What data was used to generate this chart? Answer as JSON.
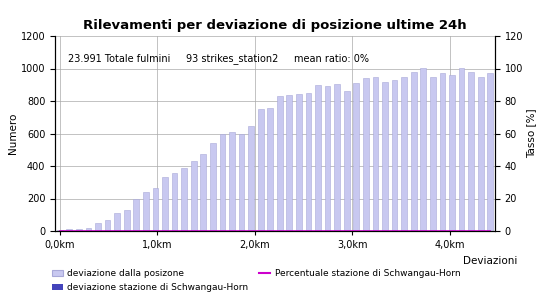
{
  "title": "Rilevamenti per deviazione di posizione ultime 24h",
  "annotation": "23.991 Totale fulmini     93 strikes_station2     mean ratio: 0%",
  "xlabel": "Deviazioni",
  "ylabel_left": "Numero",
  "ylabel_right": "Tasso [%]",
  "ylim_left": [
    0,
    1200
  ],
  "ylim_right": [
    0,
    120
  ],
  "xtick_labels": [
    "0,0km",
    "1,0km",
    "2,0km",
    "3,0km",
    "4,0km"
  ],
  "ytick_left": [
    0,
    200,
    400,
    600,
    800,
    1000,
    1200
  ],
  "ytick_right": [
    0,
    20,
    40,
    60,
    80,
    100,
    120
  ],
  "bar_values": [
    5,
    10,
    15,
    20,
    50,
    65,
    110,
    130,
    195,
    240,
    265,
    335,
    355,
    385,
    430,
    475,
    540,
    600,
    610,
    600,
    645,
    750,
    755,
    830,
    840,
    845,
    850,
    900,
    895,
    905,
    860,
    910,
    940,
    950,
    920,
    930,
    950,
    980,
    1005,
    945,
    970,
    960,
    1005,
    980,
    950,
    975
  ],
  "bar_color": "#c8c8f0",
  "bar_edge_color": "#a8a8d8",
  "station2_values": [
    0,
    0,
    0,
    0,
    0,
    0,
    0,
    0,
    0,
    0,
    0,
    0,
    0,
    0,
    0,
    0,
    0,
    0,
    0,
    0,
    0,
    0,
    0,
    0,
    0,
    0,
    0,
    0,
    0,
    0,
    0,
    0,
    0,
    0,
    0,
    0,
    0,
    0,
    0,
    0,
    0,
    0,
    0,
    0,
    0,
    0
  ],
  "percentage_values": [
    0,
    0,
    0,
    0,
    0,
    0,
    0,
    0,
    0,
    0,
    0,
    0,
    0,
    0,
    0,
    0,
    0,
    0,
    0,
    0,
    0,
    0,
    0,
    0,
    0,
    0,
    0,
    0,
    0,
    0,
    0,
    0,
    0,
    0,
    0,
    0,
    0,
    0,
    0,
    0,
    0,
    0,
    0,
    0,
    0,
    0
  ],
  "bar_color_station2": "#4444bb",
  "line_color": "#cc00cc",
  "legend_label_bar": "deviazione dalla posizone",
  "legend_label_station2": "deviazione stazione di Schwangau-Horn",
  "legend_label_line": "Percentuale stazione di Schwangau-Horn",
  "bg_color": "#ffffff",
  "grid_color": "#aaaaaa",
  "title_fontsize": 9.5,
  "label_fontsize": 7.5,
  "tick_fontsize": 7,
  "annotation_fontsize": 7
}
